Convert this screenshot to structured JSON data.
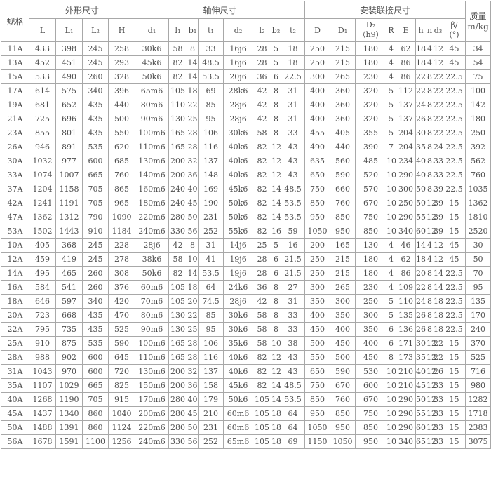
{
  "table": {
    "header": {
      "spec": "规格",
      "groups": [
        {
          "label": "外形尺寸",
          "cols": [
            "L",
            "L₁",
            "L₂",
            "H"
          ]
        },
        {
          "label": "轴伸尺寸",
          "cols": [
            "d₁",
            "l₁",
            "b₁",
            "t₁",
            "d₂",
            "l₂",
            "b₂",
            "t₂"
          ]
        },
        {
          "label": "安装联接尺寸",
          "cols": [
            "D",
            "D₁",
            "D₂\n（h9）",
            "R",
            "E",
            "h",
            "n",
            "d₃",
            "β/\n(°)"
          ]
        }
      ],
      "mass": "质量\nm/kg"
    },
    "rows": [
      [
        "11A",
        "433",
        "398",
        "245",
        "258",
        "30k6",
        "58",
        "8",
        "33",
        "16j6",
        "28",
        "5",
        "18",
        "250",
        "215",
        "180",
        "4",
        "62",
        "18",
        "4",
        "12",
        "45",
        "34"
      ],
      [
        "13A",
        "452",
        "451",
        "245",
        "293",
        "45k6",
        "82",
        "14",
        "48.5",
        "16j6",
        "28",
        "5",
        "18",
        "250",
        "215",
        "180",
        "4",
        "86",
        "18",
        "4",
        "12",
        "45",
        "54"
      ],
      [
        "15A",
        "533",
        "490",
        "260",
        "328",
        "50k6",
        "82",
        "14",
        "53.5",
        "20j6",
        "36",
        "6",
        "22.5",
        "300",
        "265",
        "230",
        "4",
        "86",
        "22",
        "8",
        "22",
        "22.5",
        "75"
      ],
      [
        "17A",
        "614",
        "575",
        "340",
        "396",
        "65m6",
        "105",
        "18",
        "69",
        "28k6",
        "42",
        "8",
        "31",
        "400",
        "360",
        "320",
        "5",
        "112",
        "22",
        "8",
        "22",
        "22.5",
        "100"
      ],
      [
        "19A",
        "681",
        "652",
        "435",
        "440",
        "80m6",
        "110",
        "22",
        "85",
        "28j6",
        "42",
        "8",
        "31",
        "400",
        "360",
        "320",
        "5",
        "137",
        "24",
        "8",
        "22",
        "22.5",
        "142"
      ],
      [
        "21A",
        "725",
        "696",
        "435",
        "500",
        "90m6",
        "130",
        "25",
        "95",
        "28j6",
        "42",
        "8",
        "31",
        "400",
        "360",
        "320",
        "5",
        "137",
        "26",
        "8",
        "22",
        "22.5",
        "180"
      ],
      [
        "23A",
        "855",
        "801",
        "435",
        "550",
        "100m6",
        "165",
        "28",
        "106",
        "30k6",
        "58",
        "8",
        "33",
        "455",
        "405",
        "355",
        "5",
        "204",
        "30",
        "8",
        "22",
        "22.5",
        "250"
      ],
      [
        "26A",
        "946",
        "891",
        "535",
        "620",
        "110m6",
        "165",
        "28",
        "116",
        "40k6",
        "82",
        "12",
        "43",
        "490",
        "440",
        "390",
        "7",
        "204",
        "35",
        "8",
        "24",
        "22.5",
        "392"
      ],
      [
        "30A",
        "1032",
        "977",
        "600",
        "685",
        "130m6",
        "200",
        "32",
        "137",
        "40k6",
        "82",
        "12",
        "43",
        "635",
        "560",
        "485",
        "10",
        "234",
        "40",
        "8",
        "33",
        "22.5",
        "562"
      ],
      [
        "33A",
        "1074",
        "1007",
        "665",
        "760",
        "140m6",
        "200",
        "36",
        "148",
        "40k6",
        "82",
        "12",
        "43",
        "650",
        "590",
        "520",
        "10",
        "290",
        "40",
        "8",
        "33",
        "22.5",
        "760"
      ],
      [
        "37A",
        "1204",
        "1158",
        "705",
        "865",
        "160m6",
        "240",
        "40",
        "169",
        "45k6",
        "82",
        "14",
        "48.5",
        "750",
        "660",
        "570",
        "10",
        "300",
        "50",
        "8",
        "39",
        "22.5",
        "1035"
      ],
      [
        "42A",
        "1241",
        "1191",
        "705",
        "965",
        "180m6",
        "240",
        "45",
        "190",
        "50k6",
        "82",
        "14",
        "53.5",
        "850",
        "760",
        "670",
        "10",
        "250",
        "50",
        "12",
        "39",
        "15",
        "1362"
      ],
      [
        "47A",
        "1362",
        "1312",
        "790",
        "1090",
        "220m6",
        "280",
        "50",
        "231",
        "50k6",
        "82",
        "14",
        "53.5",
        "950",
        "850",
        "750",
        "10",
        "290",
        "55",
        "12",
        "39",
        "15",
        "1810"
      ],
      [
        "53A",
        "1502",
        "1443",
        "910",
        "1184",
        "240m6",
        "330",
        "56",
        "252",
        "55k6",
        "82",
        "16",
        "59",
        "1050",
        "950",
        "850",
        "10",
        "340",
        "60",
        "12",
        "39",
        "15",
        "2520"
      ],
      [
        "10A",
        "405",
        "368",
        "245",
        "228",
        "28j6",
        "42",
        "8",
        "31",
        "14j6",
        "25",
        "5",
        "16",
        "200",
        "165",
        "130",
        "4",
        "46",
        "14",
        "4",
        "12",
        "45",
        "30"
      ],
      [
        "12A",
        "459",
        "419",
        "245",
        "278",
        "38k6",
        "58",
        "10",
        "41",
        "19j6",
        "28",
        "6",
        "21.5",
        "250",
        "215",
        "180",
        "4",
        "62",
        "18",
        "4",
        "12",
        "45",
        "50"
      ],
      [
        "14A",
        "495",
        "465",
        "260",
        "308",
        "50k6",
        "82",
        "14",
        "53.5",
        "19j6",
        "28",
        "6",
        "21.5",
        "250",
        "215",
        "180",
        "4",
        "86",
        "20",
        "8",
        "14",
        "22.5",
        "70"
      ],
      [
        "16A",
        "584",
        "541",
        "260",
        "376",
        "60m6",
        "105",
        "18",
        "64",
        "24k6",
        "36",
        "8",
        "27",
        "300",
        "265",
        "230",
        "4",
        "109",
        "22",
        "8",
        "14",
        "22.5",
        "95"
      ],
      [
        "18A",
        "646",
        "597",
        "340",
        "420",
        "70m6",
        "105",
        "20",
        "74.5",
        "28j6",
        "42",
        "8",
        "31",
        "350",
        "300",
        "250",
        "5",
        "110",
        "24",
        "8",
        "18",
        "22.5",
        "135"
      ],
      [
        "20A",
        "723",
        "668",
        "435",
        "470",
        "80m6",
        "130",
        "22",
        "85",
        "30k6",
        "58",
        "8",
        "33",
        "400",
        "350",
        "300",
        "5",
        "135",
        "26",
        "8",
        "18",
        "22.5",
        "170"
      ],
      [
        "22A",
        "795",
        "735",
        "435",
        "525",
        "90m6",
        "130",
        "25",
        "95",
        "30k6",
        "58",
        "8",
        "33",
        "450",
        "400",
        "350",
        "6",
        "136",
        "26",
        "8",
        "18",
        "22.5",
        "240"
      ],
      [
        "25A",
        "910",
        "875",
        "535",
        "590",
        "100m6",
        "165",
        "28",
        "106",
        "35k6",
        "58",
        "10",
        "38",
        "500",
        "450",
        "400",
        "6",
        "171",
        "30",
        "12",
        "22",
        "15",
        "370"
      ],
      [
        "28A",
        "988",
        "902",
        "600",
        "645",
        "110m6",
        "165",
        "28",
        "116",
        "40k6",
        "82",
        "12",
        "43",
        "550",
        "500",
        "450",
        "8",
        "173",
        "35",
        "12",
        "22",
        "15",
        "525"
      ],
      [
        "31A",
        "1043",
        "970",
        "600",
        "720",
        "130m6",
        "200",
        "32",
        "137",
        "40k6",
        "82",
        "12",
        "43",
        "650",
        "590",
        "530",
        "10",
        "210",
        "40",
        "12",
        "26",
        "15",
        "716"
      ],
      [
        "35A",
        "1107",
        "1029",
        "665",
        "825",
        "150m6",
        "200",
        "36",
        "158",
        "45k6",
        "82",
        "14",
        "48.5",
        "750",
        "670",
        "600",
        "10",
        "210",
        "45",
        "12",
        "33",
        "15",
        "980"
      ],
      [
        "40A",
        "1268",
        "1190",
        "705",
        "915",
        "170m6",
        "280",
        "40",
        "179",
        "50k6",
        "105",
        "14",
        "53.5",
        "850",
        "760",
        "670",
        "10",
        "290",
        "50",
        "12",
        "33",
        "15",
        "1282"
      ],
      [
        "45A",
        "1437",
        "1340",
        "860",
        "1040",
        "200m6",
        "280",
        "45",
        "210",
        "60m6",
        "105",
        "18",
        "64",
        "950",
        "850",
        "750",
        "10",
        "290",
        "55",
        "12",
        "33",
        "15",
        "1718"
      ],
      [
        "50A",
        "1488",
        "1391",
        "860",
        "1124",
        "220m6",
        "280",
        "50",
        "231",
        "60m6",
        "105",
        "18",
        "64",
        "1050",
        "950",
        "850",
        "10",
        "290",
        "60",
        "12",
        "33",
        "15",
        "2383"
      ],
      [
        "56A",
        "1678",
        "1591",
        "1100",
        "1256",
        "240m6",
        "330",
        "56",
        "252",
        "65m6",
        "105",
        "18",
        "69",
        "1150",
        "1050",
        "950",
        "10",
        "340",
        "65",
        "12",
        "33",
        "15",
        "3075"
      ]
    ]
  }
}
